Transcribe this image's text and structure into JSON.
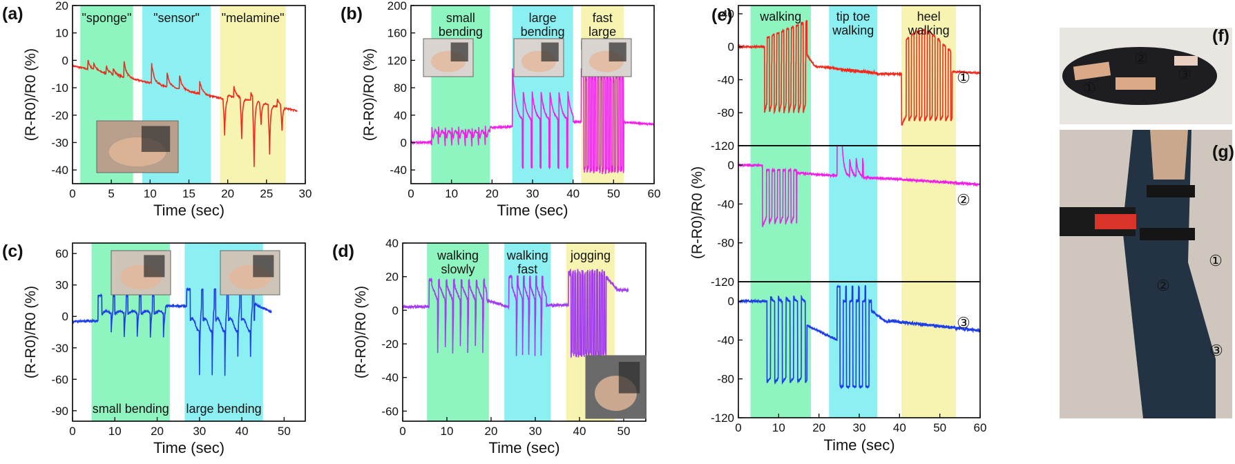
{
  "colors": {
    "green": "#8ef5c0",
    "cyan": "#8cf0f3",
    "yellow": "#f7f3b0",
    "red": "#f22a1e",
    "magenta": "#f020e6",
    "blue": "#1e3ee8",
    "violet": "#a23ef0"
  },
  "panels": [
    {
      "id": "a",
      "letter": "(a)",
      "xlabel": "Time (sec)",
      "ylabel": "(R-R0)/R0 (%)",
      "xlim": [
        0,
        30
      ],
      "ylim": [
        -45,
        20
      ],
      "xticks": [
        "0",
        "5",
        "10",
        "15",
        "20",
        "25",
        "30"
      ],
      "yticks": [
        "20",
        "10",
        "0",
        "-10",
        "-20",
        "-30",
        "-40"
      ],
      "regions": [
        {
          "from": 1,
          "to": 7.8,
          "color": "green",
          "label": [
            "\"sponge\""
          ]
        },
        {
          "from": 9,
          "to": 17.8,
          "color": "cyan",
          "label": [
            "\"sensor\""
          ]
        },
        {
          "from": 19,
          "to": 27.5,
          "color": "yellow",
          "label": [
            "\"melamine\""
          ]
        }
      ],
      "series_color": "red"
    },
    {
      "id": "b",
      "letter": "(b)",
      "xlabel": "Time (sec)",
      "ylabel": "(R-R0)/R0 (%)",
      "xlim": [
        0,
        60
      ],
      "ylim": [
        -60,
        200
      ],
      "xticks": [
        "0",
        "10",
        "20",
        "30",
        "40",
        "50",
        "60"
      ],
      "yticks": [
        "200",
        "160",
        "120",
        "80",
        "40",
        "0",
        "-40"
      ],
      "regions": [
        {
          "from": 5,
          "to": 19.5,
          "color": "green",
          "label": [
            "small",
            "bending"
          ]
        },
        {
          "from": 25,
          "to": 40,
          "color": "cyan",
          "label": [
            "large",
            "bending"
          ]
        },
        {
          "from": 42,
          "to": 52.5,
          "color": "yellow",
          "label": [
            "fast",
            "large",
            "bending"
          ]
        }
      ],
      "series_color": "magenta"
    },
    {
      "id": "c",
      "letter": "(c)",
      "xlabel": "Time (sec)",
      "ylabel": "(R-R0)/R0 (%)",
      "xlim": [
        0,
        55
      ],
      "ylim": [
        -100,
        70
      ],
      "xticks": [
        "0",
        "10",
        "20",
        "30",
        "40",
        "50"
      ],
      "yticks": [
        "60",
        "30",
        "0",
        "-30",
        "-60",
        "-90"
      ],
      "regions": [
        {
          "from": 4.5,
          "to": 23,
          "color": "green",
          "label": [
            "small bending"
          ]
        },
        {
          "from": 26.5,
          "to": 45,
          "color": "cyan",
          "label": [
            "large bending"
          ]
        }
      ],
      "series_color": "blue"
    },
    {
      "id": "d",
      "letter": "(d)",
      "xlabel": "Time (sec)",
      "ylabel": "(R-R0)/R0 (%)",
      "xlim": [
        0,
        55
      ],
      "ylim": [
        -66,
        40
      ],
      "xticks": [
        "0",
        "10",
        "20",
        "30",
        "40",
        "50"
      ],
      "yticks": [
        "40",
        "20",
        "0",
        "-20",
        "-40",
        "-60"
      ],
      "regions": [
        {
          "from": 5.5,
          "to": 19.5,
          "color": "green",
          "label": [
            "walking",
            "slowly"
          ]
        },
        {
          "from": 23,
          "to": 33.5,
          "color": "cyan",
          "label": [
            "walking",
            "fast"
          ]
        },
        {
          "from": 37,
          "to": 48,
          "color": "yellow",
          "label": [
            "jogging"
          ]
        }
      ],
      "series_color": "violet"
    }
  ],
  "panel_e": {
    "letter": "(e)",
    "xlabel": "Time (sec)",
    "ylabel": "(R-R0)/R0 (%)",
    "xlim": [
      0,
      60
    ],
    "xticks": [
      "0",
      "10",
      "20",
      "30",
      "40",
      "50",
      "60"
    ],
    "regions": [
      {
        "from": 3,
        "to": 18,
        "color": "green",
        "label": [
          "walking"
        ]
      },
      {
        "from": 22.5,
        "to": 34.5,
        "color": "cyan",
        "label": [
          "tip toe",
          "walking"
        ]
      },
      {
        "from": 40.5,
        "to": 54,
        "color": "yellow",
        "label": [
          "heel",
          "walking"
        ]
      }
    ],
    "subplots": [
      {
        "ylim": [
          -120,
          50
        ],
        "yticks": [
          "40",
          "0",
          "-40",
          "-80",
          "-120"
        ],
        "color": "red",
        "marker": "①"
      },
      {
        "ylim": [
          -120,
          20
        ],
        "yticks": [
          "0",
          "-40",
          "-80",
          "-120"
        ],
        "color": "magenta",
        "marker": "②"
      },
      {
        "ylim": [
          -120,
          20
        ],
        "yticks": [
          "0",
          "-40",
          "-80",
          "-120"
        ],
        "color": "blue",
        "marker": "③"
      }
    ]
  },
  "panel_f": {
    "letter": "(f)",
    "markers": [
      "①",
      "②",
      "③"
    ]
  },
  "panel_g": {
    "letter": "(g)",
    "markers": [
      "①",
      "②",
      "③"
    ]
  }
}
